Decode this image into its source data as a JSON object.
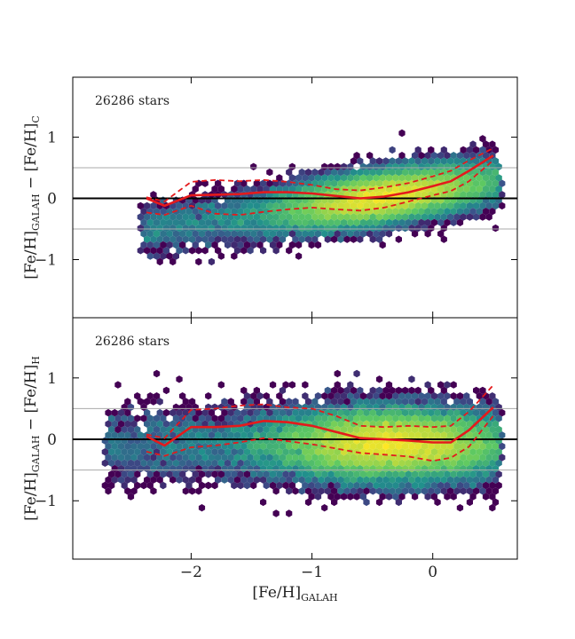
{
  "chart_data": {
    "type": "scatter",
    "xlabel": "[Fe/H]",
    "xlabel_sub": "GALAH",
    "xlim": [
      -2.98,
      0.7
    ],
    "x_ticks": [
      {
        "v": -2,
        "label": "−2"
      },
      {
        "v": -1,
        "label": "−1"
      },
      {
        "v": 0,
        "label": "0"
      }
    ],
    "panels": [
      {
        "id": "top",
        "annotation": "26286 stars",
        "ylabel": {
          "a": "[Fe/H]",
          "a_sub": "GALAH",
          "mid": " − ",
          "b": "[Fe/H]",
          "b_sub": "C"
        },
        "ylim": [
          -1.95,
          1.98
        ],
        "y_ticks": [
          {
            "v": 1,
            "label": "1"
          },
          {
            "v": 0,
            "label": "0"
          },
          {
            "v": -1,
            "label": "−1"
          }
        ],
        "hlines_grey": [
          0.5,
          -0.5
        ],
        "hline_black": 0,
        "median": {
          "x": [
            -2.37,
            -2.22,
            -2.0,
            -1.8,
            -1.6,
            -1.4,
            -1.2,
            -1.0,
            -0.8,
            -0.6,
            -0.4,
            -0.2,
            0.0,
            0.15,
            0.3,
            0.5
          ],
          "y": [
            0.0,
            -0.12,
            0.05,
            0.06,
            0.07,
            0.1,
            0.1,
            0.08,
            0.04,
            0.0,
            0.03,
            0.1,
            0.2,
            0.28,
            0.45,
            0.7
          ]
        },
        "upper": {
          "x": [
            -2.37,
            -2.22,
            -2.0,
            -1.8,
            -1.6,
            -1.4,
            -1.2,
            -1.0,
            -0.8,
            -0.6,
            -0.4,
            -0.2,
            0.0,
            0.15,
            0.3,
            0.5
          ],
          "y": [
            0.02,
            -0.05,
            0.27,
            0.3,
            0.28,
            0.3,
            0.27,
            0.22,
            0.15,
            0.13,
            0.18,
            0.25,
            0.36,
            0.45,
            0.62,
            0.82
          ]
        },
        "lower": {
          "x": [
            -2.37,
            -2.22,
            -2.0,
            -1.8,
            -1.6,
            -1.4,
            -1.2,
            -1.0,
            -0.8,
            -0.6,
            -0.4,
            -0.2,
            0.0,
            0.15,
            0.3,
            0.5
          ],
          "y": [
            -0.23,
            -0.27,
            -0.12,
            -0.25,
            -0.27,
            -0.22,
            -0.18,
            -0.15,
            -0.18,
            -0.2,
            -0.15,
            -0.05,
            0.05,
            0.12,
            0.28,
            0.62
          ]
        },
        "density": {
          "center": -0.4,
          "spread_x": 0.45,
          "offset": 0.03,
          "slope": 0.28,
          "spread_y": 0.2,
          "x_range": [
            -2.4,
            0.55
          ],
          "seed": 7
        }
      },
      {
        "id": "bottom",
        "annotation": "26286 stars",
        "ylabel": {
          "a": "[Fe/H]",
          "a_sub": "GALAH",
          "mid": " − ",
          "b": "[Fe/H]",
          "b_sub": "H"
        },
        "ylim": [
          -1.95,
          1.98
        ],
        "y_ticks": [
          {
            "v": 1,
            "label": "1"
          },
          {
            "v": 0,
            "label": "0"
          },
          {
            "v": -1,
            "label": "−1"
          }
        ],
        "hlines_grey": [
          0.5,
          -0.5
        ],
        "hline_black": 0,
        "median": {
          "x": [
            -2.37,
            -2.22,
            -2.0,
            -1.8,
            -1.6,
            -1.4,
            -1.2,
            -1.0,
            -0.8,
            -0.6,
            -0.4,
            -0.2,
            0.0,
            0.15,
            0.3,
            0.5
          ],
          "y": [
            0.05,
            -0.1,
            0.2,
            0.2,
            0.22,
            0.3,
            0.28,
            0.22,
            0.12,
            0.02,
            0.0,
            -0.02,
            -0.05,
            -0.05,
            0.15,
            0.52
          ]
        },
        "upper": {
          "x": [
            -2.37,
            -2.22,
            -2.0,
            -1.8,
            -1.6,
            -1.4,
            -1.2,
            -1.0,
            -0.8,
            -0.6,
            -0.4,
            -0.2,
            0.0,
            0.15,
            0.3,
            0.5
          ],
          "y": [
            0.08,
            0.02,
            0.48,
            0.5,
            0.55,
            0.57,
            0.52,
            0.5,
            0.38,
            0.22,
            0.2,
            0.22,
            0.2,
            0.22,
            0.45,
            0.88
          ]
        },
        "lower": {
          "x": [
            -2.37,
            -2.22,
            -2.0,
            -1.8,
            -1.6,
            -1.4,
            -1.2,
            -1.0,
            -0.8,
            -0.6,
            -0.4,
            -0.2,
            0.0,
            0.15,
            0.3,
            0.5
          ],
          "y": [
            -0.2,
            -0.27,
            -0.13,
            -0.1,
            -0.05,
            0.02,
            -0.03,
            -0.08,
            -0.15,
            -0.22,
            -0.25,
            -0.28,
            -0.35,
            -0.3,
            -0.12,
            0.38
          ]
        },
        "density": {
          "center": -0.35,
          "spread_x": 0.5,
          "offset": -0.08,
          "slope": 0.0,
          "spread_y": 0.28,
          "x_range": [
            -2.7,
            0.55
          ],
          "seed": 19
        }
      }
    ],
    "colors": {
      "median": "#e41a1c",
      "percentiles": "#e41a1c",
      "zero_line": "#000000",
      "guide_lines": "#aaaaaa",
      "colormap": [
        "#440154",
        "#3b528b",
        "#21918c",
        "#5ec962",
        "#fde725"
      ]
    }
  }
}
